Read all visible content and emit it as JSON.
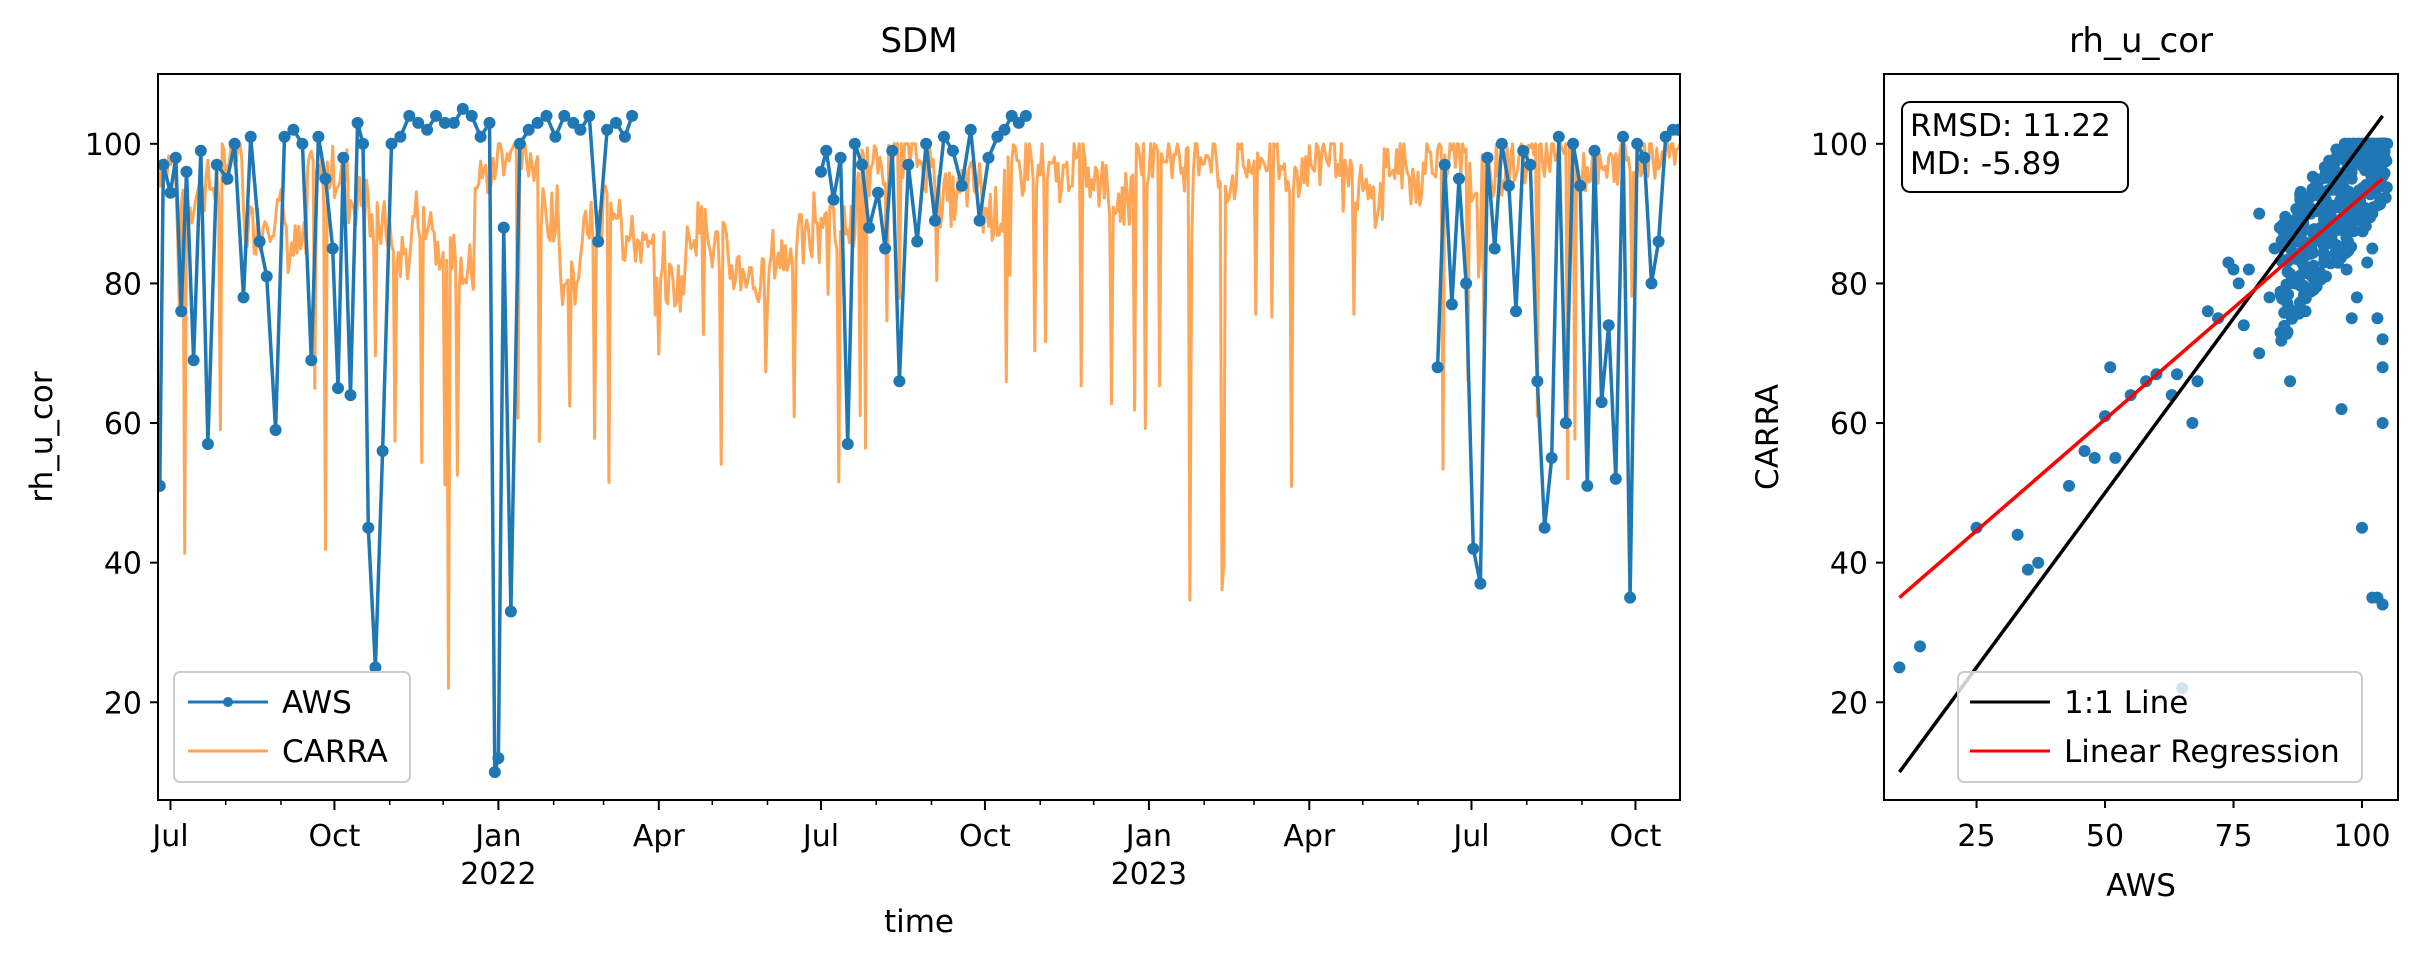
{
  "chart_data": [
    {
      "type": "line",
      "title": "SDM",
      "xlabel": "time",
      "ylabel": "rh_u_cor",
      "xlim": [
        "2021-06-24",
        "2023-10-26"
      ],
      "ylim": [
        6,
        110
      ],
      "x_ticks": [
        {
          "date": "2021-07-01",
          "label": "Jul",
          "sublabel": ""
        },
        {
          "date": "2021-10-01",
          "label": "Oct",
          "sublabel": ""
        },
        {
          "date": "2022-01-01",
          "label": "Jan",
          "sublabel": "2022"
        },
        {
          "date": "2022-04-01",
          "label": "Apr",
          "sublabel": ""
        },
        {
          "date": "2022-07-01",
          "label": "Jul",
          "sublabel": ""
        },
        {
          "date": "2022-10-01",
          "label": "Oct",
          "sublabel": ""
        },
        {
          "date": "2023-01-01",
          "label": "Jan",
          "sublabel": "2023"
        },
        {
          "date": "2023-04-01",
          "label": "Apr",
          "sublabel": ""
        },
        {
          "date": "2023-07-01",
          "label": "Jul",
          "sublabel": ""
        },
        {
          "date": "2023-10-01",
          "label": "Oct",
          "sublabel": ""
        }
      ],
      "y_ticks": [
        20,
        40,
        60,
        80,
        100
      ],
      "legend": {
        "placement": "lower-left",
        "entries": [
          "AWS",
          "CARRA"
        ]
      },
      "grid": false,
      "series": [
        {
          "name": "AWS",
          "color": "#1f77b4",
          "marker": "circle",
          "x": [
            "2021-06-25",
            "2021-06-27",
            "2021-07-01",
            "2021-07-04",
            "2021-07-07",
            "2021-07-10",
            "2021-07-14",
            "2021-07-18",
            "2021-07-22",
            "2021-07-27",
            "2021-08-02",
            "2021-08-06",
            "2021-08-11",
            "2021-08-15",
            "2021-08-20",
            "2021-08-24",
            "2021-08-29",
            "2021-09-03",
            "2021-09-08",
            "2021-09-13",
            "2021-09-18",
            "2021-09-22",
            "2021-09-26",
            "2021-09-30",
            "2021-10-03",
            "2021-10-06",
            "2021-10-10",
            "2021-10-14",
            "2021-10-17",
            "2021-10-20",
            "2021-10-24",
            "2021-10-28",
            "2021-11-02",
            "2021-11-07",
            "2021-11-12",
            "2021-11-17",
            "2021-11-22",
            "2021-11-27",
            "2021-12-02",
            "2021-12-07",
            "2021-12-12",
            "2021-12-17",
            "2021-12-22",
            "2021-12-27",
            "2021-12-30",
            "2022-01-01",
            "2022-01-04",
            "2022-01-08",
            "2022-01-13",
            "2022-01-18",
            "2022-01-23",
            "2022-01-28",
            "2022-02-02",
            "2022-02-07",
            "2022-02-12",
            "2022-02-16",
            "2022-02-21",
            "2022-02-26",
            "2022-03-03",
            "2022-03-08",
            "2022-03-13",
            "2022-03-17"
          ],
          "values": [
            51,
            97,
            93,
            98,
            76,
            96,
            69,
            99,
            57,
            97,
            95,
            100,
            78,
            101,
            86,
            81,
            59,
            101,
            102,
            100,
            69,
            101,
            95,
            85,
            65,
            98,
            64,
            103,
            100,
            45,
            25,
            56,
            100,
            101,
            104,
            103,
            102,
            104,
            103,
            103,
            105,
            104,
            101,
            103,
            10,
            12,
            88,
            33,
            100,
            102,
            103,
            104,
            101,
            104,
            103,
            102,
            104,
            86,
            102,
            103,
            101,
            104
          ],
          "x2": [
            "2022-07-01",
            "2022-07-04",
            "2022-07-08",
            "2022-07-12",
            "2022-07-16",
            "2022-07-20",
            "2022-07-24",
            "2022-07-28",
            "2022-08-02",
            "2022-08-06",
            "2022-08-10",
            "2022-08-14",
            "2022-08-19",
            "2022-08-24",
            "2022-08-29",
            "2022-09-03",
            "2022-09-08",
            "2022-09-13",
            "2022-09-18",
            "2022-09-23",
            "2022-09-28",
            "2022-10-03",
            "2022-10-08",
            "2022-10-12",
            "2022-10-16",
            "2022-10-20",
            "2022-10-24"
          ],
          "values2": [
            96,
            99,
            92,
            98,
            57,
            100,
            97,
            88,
            93,
            85,
            99,
            66,
            97,
            86,
            100,
            89,
            101,
            99,
            94,
            102,
            89,
            98,
            101,
            102,
            104,
            103,
            104
          ],
          "x3": [
            "2023-06-12",
            "2023-06-16",
            "2023-06-20",
            "2023-06-24",
            "2023-06-28",
            "2023-07-02",
            "2023-07-06",
            "2023-07-10",
            "2023-07-14",
            "2023-07-18",
            "2023-07-22",
            "2023-07-26",
            "2023-07-30",
            "2023-08-03",
            "2023-08-07",
            "2023-08-11",
            "2023-08-15",
            "2023-08-19",
            "2023-08-23",
            "2023-08-27",
            "2023-08-31",
            "2023-09-04",
            "2023-09-08",
            "2023-09-12",
            "2023-09-16",
            "2023-09-20",
            "2023-09-24",
            "2023-09-28",
            "2023-10-02",
            "2023-10-06",
            "2023-10-10",
            "2023-10-14",
            "2023-10-18",
            "2023-10-22",
            "2023-10-25"
          ],
          "values3": [
            68,
            97,
            77,
            95,
            80,
            42,
            37,
            98,
            85,
            100,
            94,
            76,
            99,
            97,
            66,
            45,
            55,
            101,
            60,
            100,
            94,
            51,
            99,
            63,
            74,
            52,
            101,
            35,
            100,
            98,
            80,
            86,
            101,
            102,
            102
          ]
        },
        {
          "name": "CARRA",
          "color": "#ff7f0e",
          "x_range": [
            "2021-06-24",
            "2023-10-26"
          ],
          "baseline_values": [
            97,
            92,
            94,
            98,
            88,
            90,
            85,
            95,
            96,
            92,
            88,
            84,
            90,
            86,
            82,
            95,
            99,
            98,
            90,
            80,
            88,
            92,
            86,
            84,
            80,
            88,
            85,
            82,
            80,
            84,
            86,
            90,
            88,
            96,
            98,
            99,
            97,
            92,
            94,
            90,
            96,
            98,
            95,
            97,
            94,
            92,
            98,
            99,
            97,
            99,
            95,
            97,
            98,
            96,
            97,
            99,
            94,
            92,
            97,
            95,
            99,
            97,
            95,
            96,
            98,
            99,
            100,
            97,
            96,
            98,
            99,
            100
          ]
        }
      ]
    },
    {
      "type": "scatter",
      "title": "rh_u_cor",
      "xlabel": "AWS",
      "ylabel": "CARRA",
      "xlim": [
        7,
        107
      ],
      "ylim": [
        6,
        110
      ],
      "x_ticks": [
        25,
        50,
        75,
        100
      ],
      "y_ticks": [
        20,
        40,
        60,
        80,
        100
      ],
      "annotation": [
        "RMSD: 11.22",
        "MD: -5.89"
      ],
      "legend": {
        "placement": "lower-right",
        "entries": [
          "1:1 Line",
          "Linear Regression"
        ]
      },
      "grid": false,
      "series": [
        {
          "name": "points",
          "color": "#1f77b4",
          "points": [
            [
              10,
              25
            ],
            [
              14,
              28
            ],
            [
              25,
              45
            ],
            [
              33,
              44
            ],
            [
              35,
              39
            ],
            [
              37,
              40
            ],
            [
              43,
              51
            ],
            [
              46,
              56
            ],
            [
              48,
              55
            ],
            [
              50,
              61
            ],
            [
              51,
              68
            ],
            [
              52,
              55
            ],
            [
              55,
              64
            ],
            [
              58,
              66
            ],
            [
              60,
              67
            ],
            [
              63,
              64
            ],
            [
              64,
              67
            ],
            [
              65,
              22
            ],
            [
              67,
              60
            ],
            [
              68,
              66
            ],
            [
              70,
              76
            ],
            [
              72,
              75
            ],
            [
              74,
              83
            ],
            [
              75,
              82
            ],
            [
              76,
              80
            ],
            [
              77,
              74
            ],
            [
              78,
              82
            ],
            [
              80,
              90
            ],
            [
              82,
              78
            ],
            [
              83,
              85
            ],
            [
              84,
              88
            ],
            [
              85,
              86
            ],
            [
              86,
              66
            ],
            [
              87,
              80
            ],
            [
              88,
              92
            ],
            [
              89,
              84
            ],
            [
              90,
              90
            ],
            [
              91,
              94
            ],
            [
              92,
              88
            ],
            [
              93,
              96
            ],
            [
              94,
              91
            ],
            [
              95,
              98
            ],
            [
              95,
              85
            ],
            [
              96,
              93
            ],
            [
              97,
              99
            ],
            [
              97,
              87
            ],
            [
              98,
              95
            ],
            [
              99,
              92
            ],
            [
              99,
              100
            ],
            [
              100,
              97
            ],
            [
              100,
              89
            ],
            [
              101,
              94
            ],
            [
              101,
              83
            ],
            [
              102,
              99
            ],
            [
              102,
              90
            ],
            [
              103,
              96
            ],
            [
              103,
              75
            ],
            [
              104,
              72
            ],
            [
              104,
              68
            ],
            [
              104,
              60
            ],
            [
              102,
              35
            ],
            [
              103,
              35
            ],
            [
              104,
              34
            ],
            [
              100,
              45
            ],
            [
              96,
              62
            ],
            [
              98,
              75
            ],
            [
              89,
              76
            ],
            [
              86,
              80
            ],
            [
              80,
              70
            ],
            [
              93,
              81
            ],
            [
              91,
              87
            ],
            [
              97,
              82
            ],
            [
              99,
              78
            ],
            [
              102,
              85
            ]
          ]
        },
        {
          "name": "1:1 Line",
          "color": "#000000",
          "x": [
            10,
            104
          ],
          "y": [
            10,
            104
          ]
        },
        {
          "name": "Linear Regression",
          "color": "#ff0000",
          "x": [
            10,
            104
          ],
          "y": [
            35,
            95
          ]
        }
      ]
    }
  ]
}
